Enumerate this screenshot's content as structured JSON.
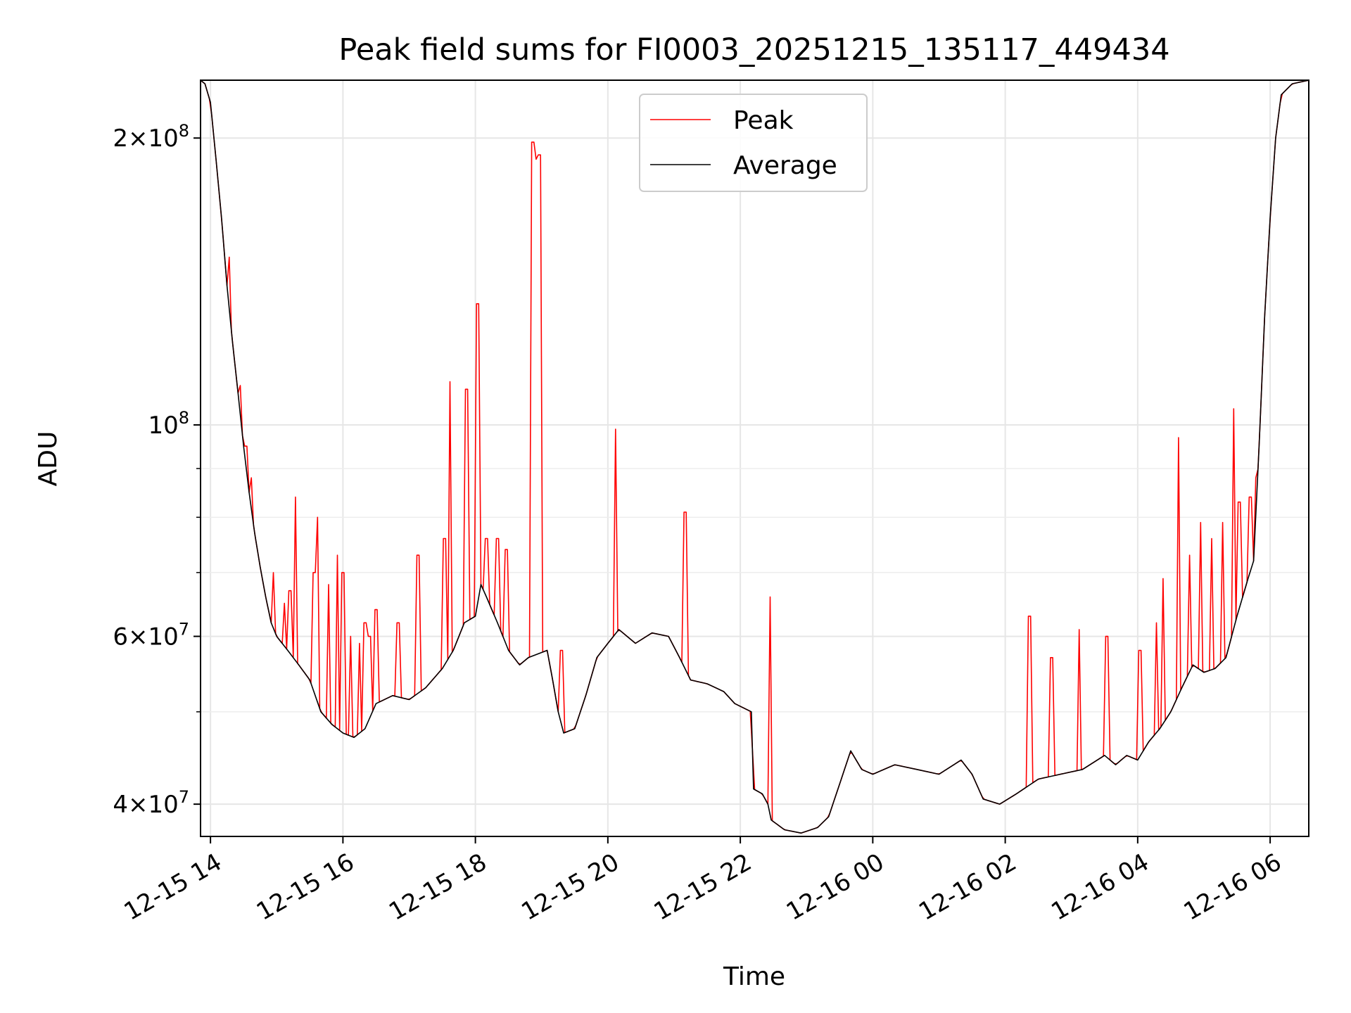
{
  "chart_data": {
    "type": "line",
    "title": "Peak field sums for FI0003_20251215_135117_449434",
    "xlabel": "Time",
    "ylabel": "ADU",
    "yscale": "log",
    "ylim": [
      37000000,
      230000000
    ],
    "xlim": [
      "2025-12-15 13:51",
      "2025-12-16 06:35"
    ],
    "grid": true,
    "legend": "upper center",
    "x_ticks": [
      {
        "t": "2025-12-15 14:00",
        "label": "12-15 14"
      },
      {
        "t": "2025-12-15 16:00",
        "label": "12-15 16"
      },
      {
        "t": "2025-12-15 18:00",
        "label": "12-15 18"
      },
      {
        "t": "2025-12-15 20:00",
        "label": "12-15 20"
      },
      {
        "t": "2025-12-15 22:00",
        "label": "12-15 22"
      },
      {
        "t": "2025-12-16 00:00",
        "label": "12-16 00"
      },
      {
        "t": "2025-12-16 02:00",
        "label": "12-16 02"
      },
      {
        "t": "2025-12-16 04:00",
        "label": "12-16 04"
      },
      {
        "t": "2025-12-16 06:00",
        "label": "12-16 06"
      }
    ],
    "y_ticks": [
      {
        "v": 40000000,
        "mant": "4",
        "exp": "7",
        "mantissa": true
      },
      {
        "v": 60000000,
        "mant": "6",
        "exp": "7",
        "mantissa": true
      },
      {
        "v": 100000000,
        "mant": "",
        "exp": "8",
        "mantissa": false
      },
      {
        "v": 200000000,
        "mant": "2",
        "exp": "8",
        "mantissa": true
      }
    ],
    "y_minor": [
      50000000,
      70000000,
      80000000,
      90000000
    ],
    "series": [
      {
        "name": "Peak",
        "color": "#ff0000",
        "spikes": [
          [
            "2025-12-15 14:17",
            150000000
          ],
          [
            "2025-12-15 14:27",
            110000000
          ],
          [
            "2025-12-15 14:32",
            95000000
          ],
          [
            "2025-12-15 14:37",
            88000000
          ],
          [
            "2025-12-15 14:57",
            70000000
          ],
          [
            "2025-12-15 15:07",
            65000000
          ],
          [
            "2025-12-15 15:12",
            67000000
          ],
          [
            "2025-12-15 15:17",
            84000000
          ],
          [
            "2025-12-15 15:34",
            70000000
          ],
          [
            "2025-12-15 15:37",
            80000000
          ],
          [
            "2025-12-15 15:47",
            68000000
          ],
          [
            "2025-12-15 15:55",
            73000000
          ],
          [
            "2025-12-15 16:00",
            70000000
          ],
          [
            "2025-12-15 16:07",
            60000000
          ],
          [
            "2025-12-15 16:15",
            59000000
          ],
          [
            "2025-12-15 16:20",
            62000000
          ],
          [
            "2025-12-15 16:24",
            60000000
          ],
          [
            "2025-12-15 16:30",
            64000000
          ],
          [
            "2025-12-15 16:50",
            62000000
          ],
          [
            "2025-12-15 17:08",
            73000000
          ],
          [
            "2025-12-15 17:32",
            76000000
          ],
          [
            "2025-12-15 17:37",
            111000000
          ],
          [
            "2025-12-15 17:52",
            109000000
          ],
          [
            "2025-12-15 18:02",
            134000000
          ],
          [
            "2025-12-15 18:10",
            76000000
          ],
          [
            "2025-12-15 18:20",
            76000000
          ],
          [
            "2025-12-15 18:28",
            74000000
          ],
          [
            "2025-12-15 18:52",
            198000000
          ],
          [
            "2025-12-15 18:55",
            190000000
          ],
          [
            "2025-12-15 18:58",
            192000000
          ],
          [
            "2025-12-15 19:18",
            58000000
          ],
          [
            "2025-12-15 20:07",
            99000000
          ],
          [
            "2025-12-15 21:10",
            81000000
          ],
          [
            "2025-12-15 22:27",
            66000000
          ],
          [
            "2025-12-16 02:22",
            63000000
          ],
          [
            "2025-12-16 02:42",
            57000000
          ],
          [
            "2025-12-16 03:07",
            61000000
          ],
          [
            "2025-12-16 03:32",
            60000000
          ],
          [
            "2025-12-16 04:02",
            58000000
          ],
          [
            "2025-12-16 04:17",
            62000000
          ],
          [
            "2025-12-16 04:23",
            69000000
          ],
          [
            "2025-12-16 04:37",
            97000000
          ],
          [
            "2025-12-16 04:47",
            73000000
          ],
          [
            "2025-12-16 04:57",
            79000000
          ],
          [
            "2025-12-16 05:07",
            76000000
          ],
          [
            "2025-12-16 05:17",
            79000000
          ],
          [
            "2025-12-16 05:27",
            104000000
          ],
          [
            "2025-12-16 05:32",
            83000000
          ],
          [
            "2025-12-16 05:42",
            84000000
          ],
          [
            "2025-12-16 05:47",
            88000000
          ]
        ]
      },
      {
        "name": "Average",
        "color": "#000000",
        "points": [
          [
            "2025-12-15 13:51",
            230000000
          ],
          [
            "2025-12-15 13:55",
            228000000
          ],
          [
            "2025-12-15 14:00",
            218000000
          ],
          [
            "2025-12-15 14:05",
            190000000
          ],
          [
            "2025-12-15 14:10",
            165000000
          ],
          [
            "2025-12-15 14:15",
            140000000
          ],
          [
            "2025-12-15 14:20",
            122000000
          ],
          [
            "2025-12-15 14:25",
            108000000
          ],
          [
            "2025-12-15 14:30",
            95000000
          ],
          [
            "2025-12-15 14:35",
            85000000
          ],
          [
            "2025-12-15 14:40",
            77000000
          ],
          [
            "2025-12-15 14:45",
            71000000
          ],
          [
            "2025-12-15 14:50",
            66000000
          ],
          [
            "2025-12-15 14:55",
            62000000
          ],
          [
            "2025-12-15 15:00",
            60000000
          ],
          [
            "2025-12-15 15:10",
            58000000
          ],
          [
            "2025-12-15 15:20",
            56000000
          ],
          [
            "2025-12-15 15:30",
            54000000
          ],
          [
            "2025-12-15 15:40",
            50000000
          ],
          [
            "2025-12-15 15:50",
            48500000
          ],
          [
            "2025-12-15 16:00",
            47500000
          ],
          [
            "2025-12-15 16:10",
            47000000
          ],
          [
            "2025-12-15 16:20",
            48000000
          ],
          [
            "2025-12-15 16:30",
            51000000
          ],
          [
            "2025-12-15 16:45",
            52000000
          ],
          [
            "2025-12-15 17:00",
            51500000
          ],
          [
            "2025-12-15 17:15",
            53000000
          ],
          [
            "2025-12-15 17:30",
            55500000
          ],
          [
            "2025-12-15 17:40",
            58000000
          ],
          [
            "2025-12-15 17:50",
            62000000
          ],
          [
            "2025-12-15 18:00",
            63000000
          ],
          [
            "2025-12-15 18:05",
            68000000
          ],
          [
            "2025-12-15 18:10",
            66000000
          ],
          [
            "2025-12-15 18:20",
            62000000
          ],
          [
            "2025-12-15 18:30",
            58000000
          ],
          [
            "2025-12-15 18:40",
            56000000
          ],
          [
            "2025-12-15 18:48",
            57000000
          ],
          [
            "2025-12-15 19:05",
            58000000
          ],
          [
            "2025-12-15 19:10",
            54000000
          ],
          [
            "2025-12-15 19:15",
            50000000
          ],
          [
            "2025-12-15 19:20",
            47500000
          ],
          [
            "2025-12-15 19:30",
            48000000
          ],
          [
            "2025-12-15 19:40",
            52000000
          ],
          [
            "2025-12-15 19:50",
            57000000
          ],
          [
            "2025-12-15 20:00",
            59000000
          ],
          [
            "2025-12-15 20:10",
            61000000
          ],
          [
            "2025-12-15 20:25",
            59000000
          ],
          [
            "2025-12-15 20:40",
            60500000
          ],
          [
            "2025-12-15 20:55",
            60000000
          ],
          [
            "2025-12-15 21:05",
            57000000
          ],
          [
            "2025-12-15 21:15",
            54000000
          ],
          [
            "2025-12-15 21:30",
            53500000
          ],
          [
            "2025-12-15 21:45",
            52500000
          ],
          [
            "2025-12-15 21:55",
            51000000
          ],
          [
            "2025-12-15 22:10",
            50000000
          ],
          [
            "2025-12-15 22:12",
            41500000
          ],
          [
            "2025-12-15 22:20",
            41000000
          ],
          [
            "2025-12-15 22:25",
            40000000
          ],
          [
            "2025-12-15 22:28",
            38500000
          ],
          [
            "2025-12-15 22:40",
            37600000
          ],
          [
            "2025-12-15 22:55",
            37300000
          ],
          [
            "2025-12-15 23:10",
            37800000
          ],
          [
            "2025-12-15 23:20",
            38800000
          ],
          [
            "2025-12-15 23:30",
            42000000
          ],
          [
            "2025-12-15 23:40",
            45500000
          ],
          [
            "2025-12-15 23:50",
            43500000
          ],
          [
            "2025-12-16 00:00",
            43000000
          ],
          [
            "2025-12-16 00:20",
            44000000
          ],
          [
            "2025-12-16 00:40",
            43500000
          ],
          [
            "2025-12-16 01:00",
            43000000
          ],
          [
            "2025-12-16 01:20",
            44500000
          ],
          [
            "2025-12-16 01:30",
            43000000
          ],
          [
            "2025-12-16 01:40",
            40500000
          ],
          [
            "2025-12-16 01:55",
            40000000
          ],
          [
            "2025-12-16 02:10",
            41000000
          ],
          [
            "2025-12-16 02:30",
            42500000
          ],
          [
            "2025-12-16 02:50",
            43000000
          ],
          [
            "2025-12-16 03:10",
            43500000
          ],
          [
            "2025-12-16 03:30",
            45000000
          ],
          [
            "2025-12-16 03:40",
            44000000
          ],
          [
            "2025-12-16 03:50",
            45000000
          ],
          [
            "2025-12-16 04:00",
            44500000
          ],
          [
            "2025-12-16 04:10",
            46500000
          ],
          [
            "2025-12-16 04:20",
            48000000
          ],
          [
            "2025-12-16 04:30",
            50000000
          ],
          [
            "2025-12-16 04:40",
            53000000
          ],
          [
            "2025-12-16 04:50",
            56000000
          ],
          [
            "2025-12-16 05:00",
            55000000
          ],
          [
            "2025-12-16 05:10",
            55500000
          ],
          [
            "2025-12-16 05:20",
            57000000
          ],
          [
            "2025-12-16 05:30",
            63000000
          ],
          [
            "2025-12-16 05:40",
            69000000
          ],
          [
            "2025-12-16 05:45",
            72000000
          ],
          [
            "2025-12-16 05:50",
            95000000
          ],
          [
            "2025-12-16 05:55",
            130000000
          ],
          [
            "2025-12-16 06:00",
            165000000
          ],
          [
            "2025-12-16 06:05",
            200000000
          ],
          [
            "2025-12-16 06:10",
            222000000
          ],
          [
            "2025-12-16 06:20",
            228000000
          ],
          [
            "2025-12-16 06:35",
            230000000
          ]
        ]
      }
    ]
  }
}
